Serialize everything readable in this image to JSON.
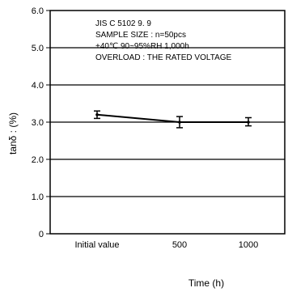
{
  "chart_data": {
    "type": "line",
    "categories": [
      "Initial value",
      "500",
      "1000"
    ],
    "series": [
      {
        "values": [
          3.2,
          3.0,
          3.0
        ],
        "error_low": [
          3.1,
          2.85,
          2.9
        ],
        "error_high": [
          3.3,
          3.15,
          3.12
        ]
      }
    ],
    "ylabel": "tanδ : (%)",
    "xlabel": "Time (h)",
    "ylim": [
      0,
      6.0
    ],
    "yticks": [
      "0",
      "1.0",
      "2.0",
      "3.0",
      "4.0",
      "5.0",
      "6.0"
    ],
    "grid": true,
    "annotation_lines": [
      "JIS C 5102 9. 9",
      "SAMPLE SIZE : n=50pcs",
      "+40℃ 90~95%RH 1,000h",
      "OVERLOAD : THE RATED VOLTAGE"
    ]
  }
}
